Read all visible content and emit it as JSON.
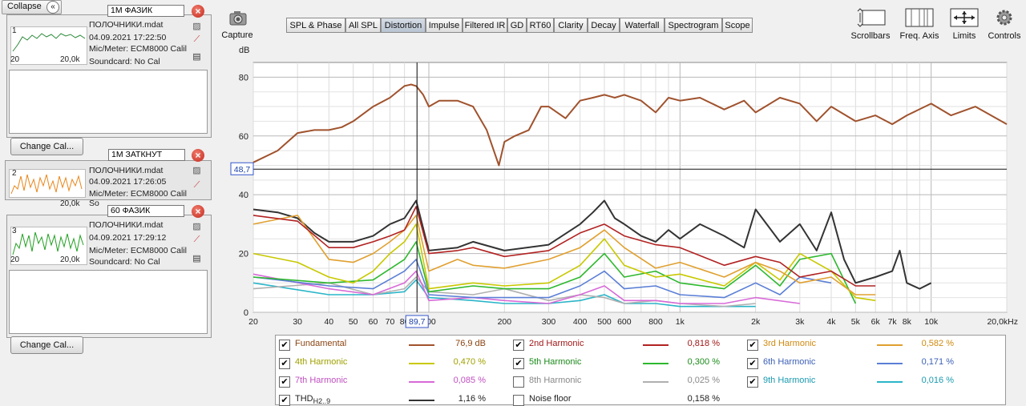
{
  "left_panel": {
    "collapse_label": "Collapse",
    "measurements": [
      {
        "index": "1",
        "name": "1M ФАЗИК",
        "file": "ПОЛОЧНИКИ.mdat",
        "date": "04.09.2021 17:22:50",
        "mic": "Mic/Meter: ECM8000 Calil",
        "soundcard": "Soundcard: No Cal",
        "x_min": "20",
        "x_max": "20,0k",
        "color": "#2e8b3a"
      },
      {
        "index": "2",
        "name": "1M ЗАТКНУТ",
        "file": "ПОЛОЧНИКИ.mdat",
        "date": "04.09.2021 17:26:05",
        "mic": "Mic/Meter: ECM8000 Calil",
        "soundcard": "So",
        "x_min": "",
        "x_max": "20,0k",
        "color": "#e8861a"
      },
      {
        "index": "3",
        "name": "60 ФАЗИК",
        "file": "ПОЛОЧНИКИ.mdat",
        "date": "04.09.2021 17:29:12",
        "mic": "Mic/Meter: ECM8000 Calil",
        "soundcard": "Soundcard: No Cal",
        "x_min": "20",
        "x_max": "20,0k",
        "color": "#21a021"
      }
    ],
    "change_cal_label": "Change Cal..."
  },
  "toolbar": {
    "capture_label": "Capture",
    "tabs": [
      "SPL & Phase",
      "All SPL",
      "Distortion",
      "Impulse",
      "Filtered IR",
      "GD",
      "RT60",
      "Clarity",
      "Decay",
      "Waterfall",
      "Spectrogram",
      "Scope"
    ],
    "active_tab": "Distortion",
    "tools": [
      "Scrollbars",
      "Freq. Axis",
      "Limits",
      "Controls"
    ]
  },
  "chart_data": {
    "type": "line",
    "ylabel": "dB",
    "x_scale": "log",
    "xlim": [
      20,
      20000
    ],
    "ylim": [
      0,
      85
    ],
    "y_ticks": [
      "80",
      "60",
      "40",
      "20",
      "0"
    ],
    "x_ticks": [
      "20",
      "30",
      "40",
      "50",
      "60",
      "70",
      "80",
      "100",
      "200",
      "300",
      "400",
      "500",
      "600",
      "800",
      "1k",
      "2k",
      "3k",
      "4k",
      "5k",
      "6k",
      "7k",
      "8k",
      "10k",
      "20,0kHz"
    ],
    "cursor": {
      "y_readout": "48,7",
      "x_readout": "89,7"
    },
    "grid": true,
    "series": [
      {
        "name": "Fundamental",
        "color": "#a0522d",
        "x": [
          20,
          25,
          30,
          35,
          40,
          45,
          50,
          60,
          70,
          80,
          85,
          89,
          95,
          100,
          110,
          130,
          150,
          170,
          190,
          200,
          220,
          250,
          280,
          300,
          350,
          400,
          450,
          500,
          550,
          600,
          700,
          800,
          900,
          1000,
          1200,
          1500,
          1800,
          2000,
          2500,
          3000,
          3500,
          4000,
          5000,
          6000,
          7000,
          8000,
          10000,
          12000,
          15000,
          20000
        ],
        "y": [
          51,
          55,
          61,
          62,
          62,
          63,
          65,
          70,
          73,
          77,
          77.5,
          77,
          74,
          70,
          72,
          72,
          70,
          62,
          50,
          58,
          60,
          62,
          70,
          70,
          66,
          72,
          73,
          74,
          73,
          74,
          72,
          68,
          73,
          72,
          73,
          69,
          72,
          68,
          73,
          71,
          65,
          70,
          65,
          67,
          64,
          67,
          71,
          67,
          70,
          64
        ]
      },
      {
        "name": "2nd Harmonic",
        "color": "#b22222",
        "x": [
          20,
          30,
          40,
          50,
          60,
          70,
          80,
          89,
          100,
          130,
          150,
          200,
          300,
          400,
          500,
          600,
          800,
          1000,
          1500,
          2000,
          2500,
          3000,
          4000,
          5000,
          6000
        ],
        "y": [
          33,
          31,
          22,
          22,
          24,
          26,
          28,
          36,
          20,
          21,
          22,
          19,
          21,
          27,
          30,
          26,
          23,
          22,
          16,
          19,
          17,
          12,
          14,
          9,
          9
        ]
      },
      {
        "name": "3rd Harmonic",
        "color": "#e0a030",
        "x": [
          20,
          30,
          40,
          50,
          60,
          70,
          80,
          89,
          100,
          130,
          150,
          200,
          300,
          400,
          500,
          600,
          800,
          1000,
          1500,
          2000,
          2500,
          3000,
          4000,
          5000,
          6000
        ],
        "y": [
          30,
          33,
          18,
          17,
          20,
          24,
          28,
          33,
          14,
          18,
          16,
          15,
          18,
          22,
          28,
          22,
          15,
          17,
          12,
          17,
          14,
          10,
          12,
          6,
          6
        ]
      },
      {
        "name": "4th Harmonic",
        "color": "#c8c800",
        "x": [
          20,
          30,
          40,
          50,
          60,
          70,
          80,
          89,
          100,
          150,
          200,
          300,
          400,
          500,
          600,
          800,
          1000,
          1500,
          2000,
          2500,
          3000,
          4000,
          5000,
          6000
        ],
        "y": [
          20,
          17,
          12,
          10,
          14,
          20,
          24,
          30,
          8,
          10,
          9,
          10,
          16,
          25,
          16,
          12,
          13,
          9,
          17,
          11,
          20,
          14,
          5,
          4
        ]
      },
      {
        "name": "5th Harmonic",
        "color": "#2eb82e",
        "x": [
          20,
          40,
          60,
          80,
          89,
          100,
          150,
          200,
          300,
          400,
          500,
          600,
          800,
          1000,
          1500,
          2000,
          2500,
          3000,
          4000,
          5000
        ],
        "y": [
          12,
          10,
          11,
          18,
          24,
          7,
          9,
          8,
          8,
          12,
          20,
          12,
          14,
          10,
          8,
          16,
          9,
          18,
          20,
          3
        ]
      },
      {
        "name": "6th Harmonic",
        "color": "#5b7fd6",
        "x": [
          20,
          40,
          60,
          80,
          89,
          100,
          150,
          200,
          300,
          400,
          500,
          600,
          800,
          1000,
          1500,
          2000,
          2500,
          3000,
          4000
        ],
        "y": [
          12,
          9,
          8,
          14,
          18,
          6,
          5,
          5,
          5,
          9,
          14,
          8,
          9,
          6,
          5,
          10,
          6,
          12,
          10
        ]
      },
      {
        "name": "7th Harmonic",
        "color": "#d86ad8",
        "x": [
          20,
          40,
          60,
          80,
          89,
          100,
          150,
          200,
          300,
          400,
          500,
          600,
          800,
          1000,
          1500,
          2000,
          3000
        ],
        "y": [
          13,
          8,
          6,
          10,
          14,
          4,
          5,
          4,
          3,
          6,
          9,
          4,
          4,
          3,
          3,
          5,
          3
        ]
      },
      {
        "name": "8th Harmonic",
        "color": "#b0b0b0",
        "x": [
          20,
          40,
          60,
          80,
          89,
          100,
          150,
          200,
          300,
          400,
          500,
          600,
          800,
          1000,
          1500,
          2000
        ],
        "y": [
          8,
          10,
          6,
          8,
          12,
          7,
          6,
          8,
          4,
          6,
          5,
          3,
          4,
          3,
          2,
          3
        ]
      },
      {
        "name": "9th Harmonic",
        "color": "#2ab5c8",
        "x": [
          20,
          40,
          60,
          80,
          89,
          100,
          150,
          200,
          300,
          400,
          500,
          600,
          800,
          1000,
          1500,
          2000
        ],
        "y": [
          10,
          6,
          6,
          7,
          11,
          5,
          4,
          3,
          3,
          4,
          6,
          3,
          3,
          2,
          2,
          2
        ]
      },
      {
        "name": "THD H2..9",
        "color": "#333333",
        "x": [
          20,
          25,
          30,
          35,
          40,
          50,
          60,
          70,
          80,
          89,
          100,
          130,
          150,
          200,
          300,
          400,
          450,
          500,
          550,
          600,
          700,
          800,
          900,
          1000,
          1200,
          1500,
          1800,
          2000,
          2500,
          3000,
          3500,
          4000,
          4500,
          5000,
          6000,
          7000,
          7500,
          8000,
          9000,
          10000
        ],
        "y": [
          35,
          34,
          32,
          27,
          24,
          24,
          26,
          30,
          32,
          38,
          21,
          22,
          24,
          21,
          23,
          30,
          34,
          38,
          32,
          30,
          26,
          24,
          28,
          25,
          30,
          26,
          22,
          35,
          24,
          30,
          21,
          34,
          18,
          10,
          12,
          14,
          21,
          10,
          8,
          10
        ]
      }
    ]
  },
  "legend": [
    {
      "name": "Fundamental",
      "value": "76,9 dB",
      "checked": true,
      "color": "#a0522d",
      "text_color": "#8b4513"
    },
    {
      "name": "2nd Harmonic",
      "value": "0,818 %",
      "checked": true,
      "color": "#b22222",
      "text_color": "#a01818"
    },
    {
      "name": "3rd Harmonic",
      "value": "0,582 %",
      "checked": true,
      "color": "#e0a030",
      "text_color": "#d08a10"
    },
    {
      "name": "4th Harmonic",
      "value": "0,470 %",
      "checked": true,
      "color": "#c8c800",
      "text_color": "#a0a000"
    },
    {
      "name": "5th Harmonic",
      "value": "0,300 %",
      "checked": true,
      "color": "#2eb82e",
      "text_color": "#1a8a1a"
    },
    {
      "name": "6th Harmonic",
      "value": "0,171 %",
      "checked": true,
      "color": "#5b7fd6",
      "text_color": "#3b5fb6"
    },
    {
      "name": "7th Harmonic",
      "value": "0,085 %",
      "checked": true,
      "color": "#d86ad8",
      "text_color": "#c050c0"
    },
    {
      "name": "8th Harmonic",
      "value": "0,025 %",
      "checked": false,
      "color": "#b0b0b0",
      "text_color": "#888888"
    },
    {
      "name": "9th Harmonic",
      "value": "0,016 %",
      "checked": true,
      "color": "#2ab5c8",
      "text_color": "#1a9ab0"
    },
    {
      "name": "THD",
      "sub": "H2..9",
      "value": "1,16 %",
      "checked": true,
      "color": "#333333",
      "text_color": "#222222"
    },
    {
      "name": "Noise floor",
      "value": "0,158 %",
      "checked": false,
      "color": "",
      "text_color": "#222222"
    }
  ]
}
